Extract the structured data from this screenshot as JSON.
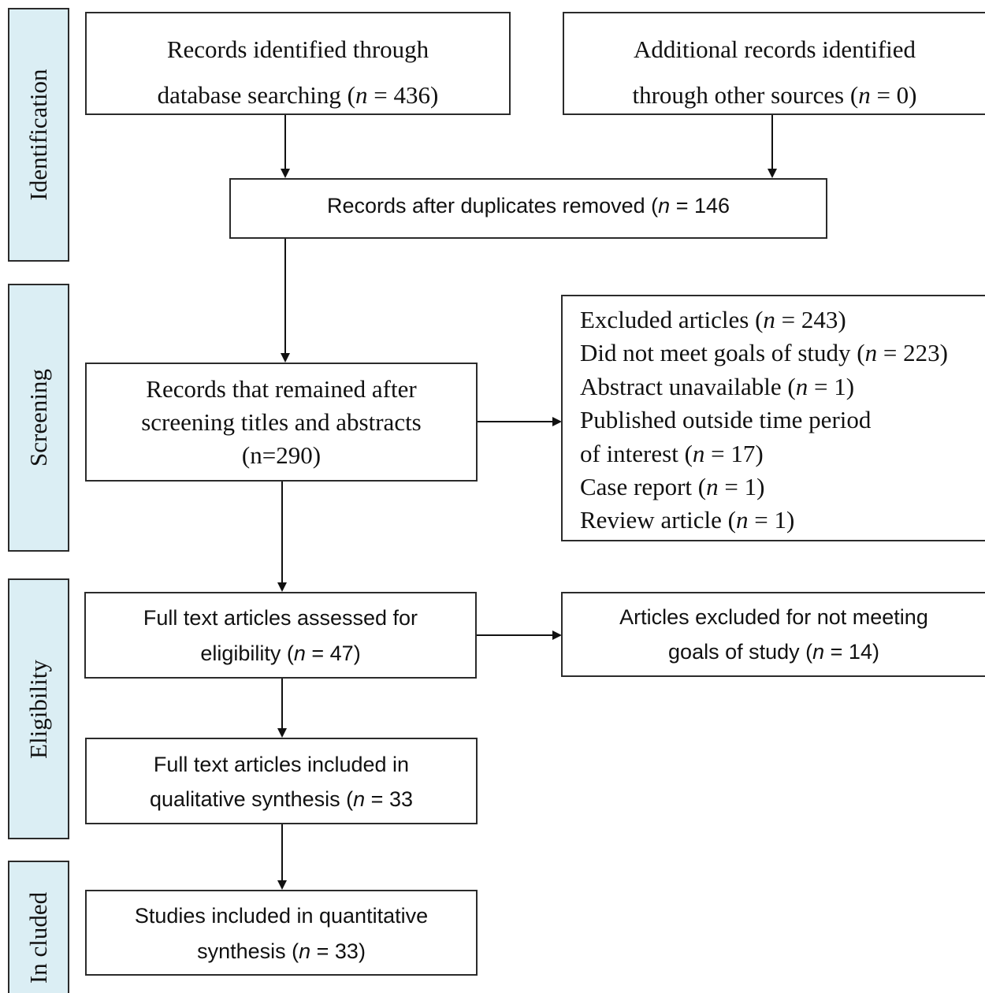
{
  "phases": {
    "identification": "Identification",
    "screening": "Screening",
    "eligibility": "Eligibility",
    "included": "In cluded"
  },
  "boxes": {
    "db_search": {
      "line1": "Records identified through",
      "line2_pre": "database searching (",
      "n": "n",
      "line2_post": " = 436)"
    },
    "other_sources": {
      "line1": "Additional records identified",
      "line2_pre": "through other sources (",
      "n": "n",
      "line2_post": " = 0)"
    },
    "duplicates_removed": {
      "pre": "Records after duplicates removed (",
      "n": "n",
      "post": " = 146"
    },
    "screened": {
      "line1": "Records that remained after",
      "line2": "screening titles and abstracts",
      "line3": "(n=290)"
    },
    "excluded": {
      "items": [
        {
          "pre": "Excluded articles (",
          "n": "n",
          "post": " = 243)"
        },
        {
          "pre": "Did not meet goals of study (",
          "n": "n",
          "post": " = 223)"
        },
        {
          "pre": "Abstract unavailable (",
          "n": "n",
          "post": " = 1)"
        },
        {
          "pre": "Published outside time period",
          "n": "",
          "post": ""
        },
        {
          "pre": "of interest (",
          "n": "n",
          "post": " = 17)"
        },
        {
          "pre": "Case report (",
          "n": "n",
          "post": " = 1)"
        },
        {
          "pre": "Review article (",
          "n": "n",
          "post": " = 1)"
        }
      ]
    },
    "fulltext_assessed": {
      "line1": "Full text articles assessed for",
      "line2_pre": "eligibility (",
      "n": "n",
      "line2_post": " = 47)"
    },
    "fulltext_excluded": {
      "line1": "Articles excluded for not meeting",
      "line2_pre": "goals of study (",
      "n": "n",
      "line2_post": " = 14)"
    },
    "qualitative": {
      "line1": "Full text articles included in",
      "line2_pre": "qualitative synthesis (",
      "n": "n",
      "line2_post": " = 33"
    },
    "quantitative": {
      "line1": "Studies included in quantitative",
      "line2_pre": "synthesis (",
      "n": "n",
      "line2_post": " = 33)"
    }
  }
}
